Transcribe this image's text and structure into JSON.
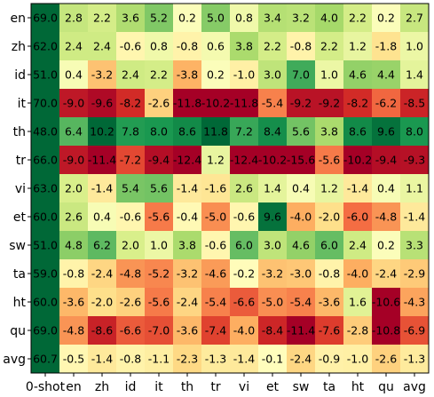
{
  "chart_data": {
    "type": "heatmap",
    "title": "",
    "xlabel": "",
    "ylabel": "",
    "x_categories": [
      "0-shot",
      "en",
      "zh",
      "id",
      "it",
      "th",
      "tr",
      "vi",
      "et",
      "sw",
      "ta",
      "ht",
      "qu",
      "avg"
    ],
    "y_categories": [
      "en",
      "zh",
      "id",
      "it",
      "th",
      "tr",
      "vi",
      "et",
      "sw",
      "ta",
      "ht",
      "qu",
      "avg"
    ],
    "values": [
      [
        69.0,
        2.8,
        2.2,
        3.6,
        5.2,
        0.2,
        5.0,
        0.8,
        3.4,
        3.2,
        4.0,
        2.2,
        0.2,
        2.7
      ],
      [
        62.0,
        2.4,
        2.4,
        -0.6,
        0.8,
        -0.8,
        0.6,
        3.8,
        2.2,
        -0.8,
        2.2,
        1.2,
        -1.8,
        1.0
      ],
      [
        51.0,
        0.4,
        -3.2,
        2.4,
        2.2,
        -3.8,
        0.2,
        -1.0,
        3.0,
        7.0,
        1.0,
        4.6,
        4.4,
        1.4
      ],
      [
        70.0,
        -9.0,
        -9.6,
        -8.2,
        -2.6,
        -11.8,
        -10.2,
        -11.8,
        -5.4,
        -9.2,
        -9.2,
        -8.2,
        -6.2,
        -8.5
      ],
      [
        48.0,
        6.4,
        10.2,
        7.8,
        8.0,
        8.6,
        11.8,
        7.2,
        8.4,
        5.6,
        3.8,
        8.6,
        9.6,
        8.0
      ],
      [
        66.0,
        -9.0,
        -11.4,
        -7.2,
        -9.4,
        -12.4,
        1.2,
        -12.4,
        -10.2,
        -15.6,
        -5.6,
        -10.2,
        -9.4,
        -9.3
      ],
      [
        63.0,
        2.0,
        -1.4,
        5.4,
        5.6,
        -1.4,
        -1.6,
        2.6,
        1.4,
        0.4,
        1.2,
        -1.4,
        0.4,
        1.1
      ],
      [
        60.0,
        2.6,
        0.4,
        -0.6,
        -5.6,
        -0.4,
        -5.0,
        -0.6,
        9.6,
        -4.0,
        -2.0,
        -6.0,
        -4.8,
        -1.4
      ],
      [
        51.0,
        4.8,
        6.2,
        2.0,
        1.0,
        3.8,
        -0.6,
        6.0,
        3.0,
        4.6,
        6.0,
        2.4,
        0.2,
        3.3
      ],
      [
        59.0,
        -0.8,
        -2.4,
        -4.8,
        -5.2,
        -3.2,
        -4.6,
        -0.2,
        -3.2,
        -3.0,
        -0.8,
        -4.0,
        -2.4,
        -2.9
      ],
      [
        60.0,
        -3.6,
        -2.0,
        -2.6,
        -5.6,
        -2.4,
        -5.4,
        -6.6,
        -5.0,
        -5.4,
        -3.6,
        1.6,
        -10.6,
        -4.3
      ],
      [
        69.0,
        -4.8,
        -8.6,
        -6.6,
        -7.0,
        -3.6,
        -7.4,
        -4.0,
        -8.4,
        -11.4,
        -7.6,
        -2.8,
        -10.8,
        -6.9
      ],
      [
        60.7,
        -0.5,
        -1.4,
        -0.8,
        -1.1,
        -2.3,
        -1.3,
        -1.4,
        -0.1,
        -2.4,
        -0.9,
        -1.0,
        -2.6,
        -1.3
      ]
    ],
    "colormap": "RdYlGn",
    "color_range": [
      -10,
      10
    ],
    "first_column_color": "#006837",
    "grid": false,
    "legend": "none"
  }
}
